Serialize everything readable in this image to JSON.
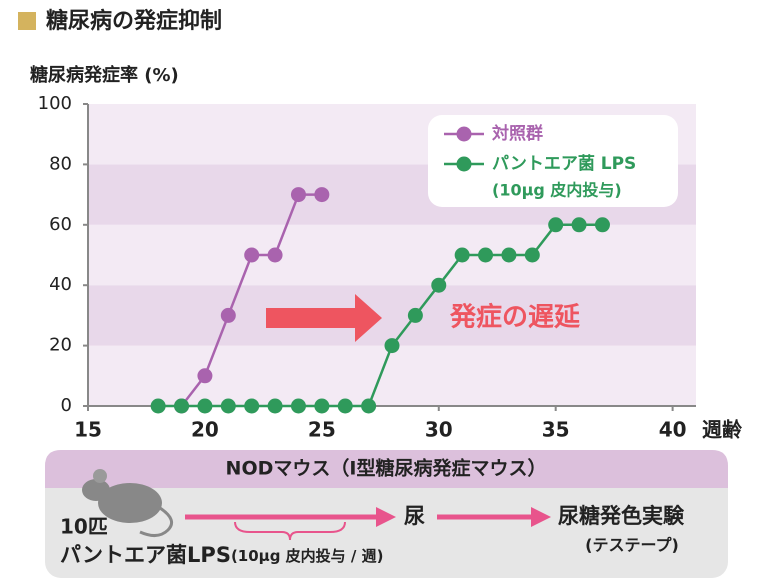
{
  "chart_data": {
    "type": "line",
    "title": "糖尿病の発症抑制",
    "y_label": "糖尿病発症率 (%)",
    "x_label": "週齢",
    "annotation": "発症の遅延",
    "legend_note": "(10μg 皮内投与)",
    "xlim": [
      15,
      41
    ],
    "xticks": [
      15,
      20,
      25,
      30,
      35,
      40
    ],
    "ylim": [
      0,
      100
    ],
    "yticks": [
      0,
      20,
      40,
      60,
      80,
      100
    ],
    "grid": true,
    "legend": "upper right",
    "series": [
      {
        "name": "対照群",
        "color": "#a963ae",
        "x": [
          19,
          20,
          21,
          22,
          23,
          24,
          25
        ],
        "values": [
          0,
          10,
          30,
          50,
          50,
          70,
          70
        ]
      },
      {
        "name": "パントエア菌 LPS",
        "color": "#2f9a5b",
        "x": [
          18,
          19,
          20,
          21,
          22,
          23,
          24,
          25,
          26,
          27,
          28,
          29,
          30,
          31,
          32,
          33,
          34,
          35,
          36,
          37
        ],
        "values": [
          0,
          0,
          0,
          0,
          0,
          0,
          0,
          0,
          0,
          0,
          20,
          30,
          40,
          50,
          50,
          50,
          50,
          60,
          60,
          60
        ]
      }
    ]
  },
  "diagram": {
    "header": "NODマウス（Ⅰ型糖尿病発症マウス）",
    "count": "10匹",
    "treatment": "パントエア菌LPS",
    "treatment_note": "(10μg 皮内投与 / 週)",
    "sample": "尿",
    "test": "尿糖発色実験",
    "test_note": "(テステープ)"
  }
}
